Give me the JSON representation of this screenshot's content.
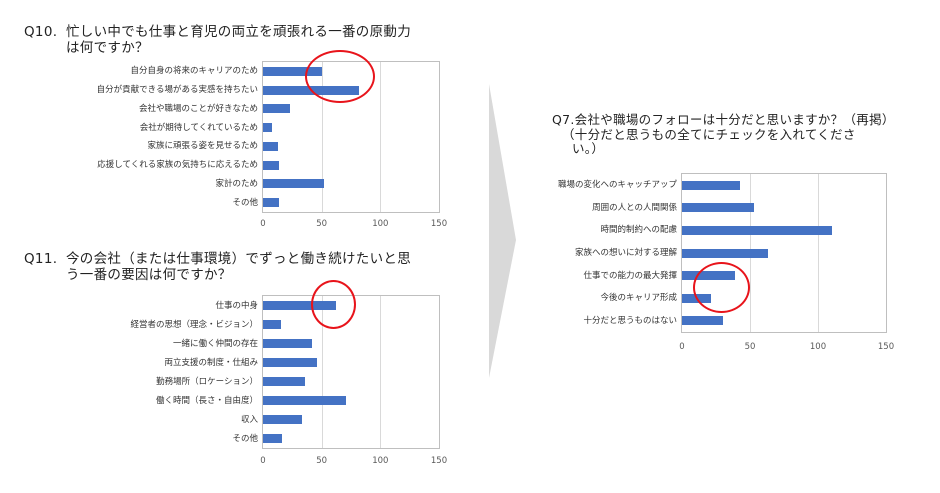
{
  "arrow": {
    "color": "#d9d9d9"
  },
  "colors": {
    "bar": "#4472c4",
    "circle": "#e8141b",
    "grid": "#d9d9d9",
    "border": "#bfbfbf"
  },
  "chart_data": [
    {
      "type": "bar",
      "orientation": "horizontal",
      "title_prefix": "Q10.",
      "title": "忙しい中でも仕事と育児の両立を頑張れる一番の原動力",
      "title_line2": "は何ですか？",
      "categories": [
        "自分自身の将来のキャリアのため",
        "自分が貢献できる場がある実感を持ちたい",
        "会社や職場のことが好きなため",
        "会社が期待してくれているため",
        "家族に頑張る姿を見せるため",
        "応援してくれる家族の気持ちに応えるため",
        "家計のため",
        "その他"
      ],
      "values": [
        50,
        82,
        23,
        8,
        13,
        14,
        52,
        14
      ],
      "xlim": [
        0,
        150
      ],
      "xticks": [
        "0",
        "50",
        "100",
        "150"
      ],
      "grid": true,
      "annotation": "red circle around top two bars (values 50 and 82)"
    },
    {
      "type": "bar",
      "orientation": "horizontal",
      "title_prefix": "Q11.",
      "title": "今の会社（または仕事環境）でずっと働き続けたいと思",
      "title_line2": "う一番の要因は何ですか？",
      "categories": [
        "仕事の中身",
        "経営者の思想（理念・ビジョン）",
        "一緒に働く仲間の存在",
        "両立支援の制度・仕組み",
        "勤務場所（ロケーション）",
        "働く時間（長さ・自由度）",
        "収入",
        "その他"
      ],
      "values": [
        62,
        15,
        42,
        46,
        36,
        71,
        33,
        16
      ],
      "xlim": [
        0,
        150
      ],
      "xticks": [
        "0",
        "50",
        "100",
        "150"
      ],
      "grid": true,
      "annotation": "red circle around end of 仕事の中身 bar"
    },
    {
      "type": "bar",
      "orientation": "horizontal",
      "title_prefix": "Q7.",
      "title": "会社や職場のフォローは十分だと思いますか？（再掲）",
      "title_line2": "（十分だと思うもの全てにチェックを入れてくださ",
      "title_line3": "い。）",
      "categories": [
        "職場の変化へのキャッチアップ",
        "周囲の人との人間関係",
        "時間的制約への配慮",
        "家族への想いに対する理解",
        "仕事での能力の最大発揮",
        "今後のキャリア形成",
        "十分だと思うものはない"
      ],
      "values": [
        43,
        53,
        110,
        63,
        39,
        21,
        30
      ],
      "xlim": [
        0,
        150
      ],
      "xticks": [
        "0",
        "50",
        "100",
        "150"
      ],
      "grid": true,
      "annotation": "red circle around 仕事での能力の最大発揮 and 今後のキャリア形成 bars"
    }
  ]
}
